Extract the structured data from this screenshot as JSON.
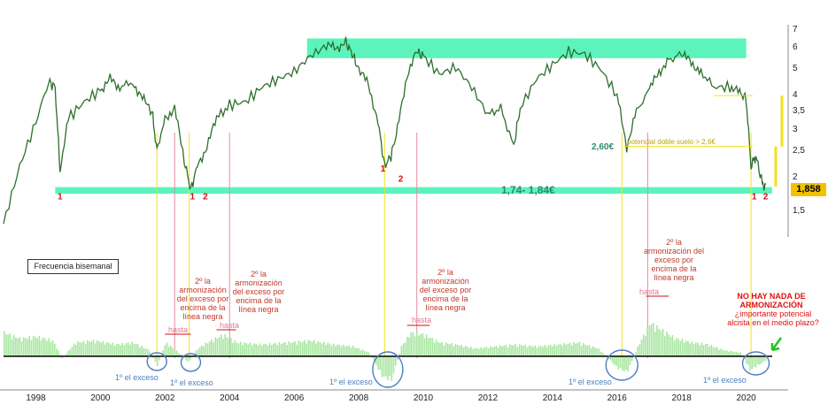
{
  "chart_data": {
    "type": "line",
    "price_axis": {
      "scale": "log",
      "ticks": [
        "7",
        "6",
        "5",
        "4",
        "3,5",
        "3",
        "2,5",
        "2",
        "1,5"
      ],
      "tick_values": [
        7,
        6,
        5,
        4,
        3.5,
        3,
        2.5,
        2,
        1.5
      ]
    },
    "x_ticks": [
      "1998",
      "2000",
      "2002",
      "2004",
      "2006",
      "2008",
      "2010",
      "2012",
      "2014",
      "2016",
      "2018",
      "2020"
    ],
    "x_tick_values": [
      1998,
      2000,
      2002,
      2004,
      2006,
      2008,
      2010,
      2012,
      2014,
      2016,
      2018,
      2020
    ],
    "price_series": {
      "x": [
        1997.0,
        1997.5,
        1998.0,
        1998.4,
        1998.6,
        1998.75,
        1999.0,
        1999.5,
        2000.0,
        2000.3,
        2000.6,
        2001.0,
        2001.3,
        2001.6,
        2001.75,
        2002.0,
        2002.3,
        2002.6,
        2002.8,
        2003.0,
        2003.3,
        2003.6,
        2004.0,
        2004.5,
        2005.0,
        2005.5,
        2006.0,
        2006.5,
        2007.0,
        2007.3,
        2007.6,
        2007.8,
        2008.0,
        2008.3,
        2008.6,
        2008.8,
        2009.0,
        2009.2,
        2009.5,
        2009.8,
        2010.0,
        2010.5,
        2011.0,
        2011.5,
        2012.0,
        2012.4,
        2012.8,
        2013.0,
        2013.5,
        2014.0,
        2014.5,
        2015.0,
        2015.5,
        2016.0,
        2016.3,
        2016.6,
        2017.0,
        2017.3,
        2017.6,
        2018.0,
        2018.3,
        2018.6,
        2019.0,
        2019.5,
        2019.8,
        2020.0,
        2020.15,
        2020.3,
        2020.5,
        2020.6
      ],
      "y": [
        1.35,
        2.2,
        3.2,
        4.5,
        4.3,
        2.1,
        3.3,
        3.8,
        4.2,
        4.6,
        4.3,
        4.5,
        3.9,
        3.5,
        2.5,
        3.3,
        3.6,
        2.3,
        1.8,
        2.2,
        2.6,
        3.3,
        3.7,
        3.8,
        4.3,
        4.6,
        4.9,
        5.6,
        6.1,
        6.0,
        6.3,
        5.7,
        5.0,
        4.4,
        3.2,
        2.2,
        2.4,
        3.0,
        4.8,
        5.8,
        5.6,
        4.8,
        5.1,
        4.3,
        3.4,
        3.6,
        2.6,
        3.6,
        4.6,
        5.2,
        5.8,
        5.7,
        5.0,
        4.0,
        2.6,
        3.5,
        4.2,
        4.9,
        5.4,
        5.7,
        5.3,
        4.9,
        4.3,
        4.3,
        4.1,
        3.9,
        2.2,
        2.4,
        1.9,
        1.858
      ]
    },
    "resistance_band": {
      "x_start": 2006.4,
      "x_end": 2020.0,
      "y_low": 5.5,
      "y_high": 6.5
    },
    "support_band": {
      "x_start": 1998.6,
      "x_end": 2020.8,
      "y_low": 1.74,
      "y_high": 1.84,
      "label": "1,74- 1,84€"
    },
    "current_price": "1,858",
    "level_260": {
      "label": "2,60€",
      "value": 2.6,
      "x_start": 2016.2,
      "x_end": 2020.2
    },
    "level_400": {
      "value": 4.0,
      "x_start": 2019.0,
      "x_end": 2020.2
    },
    "double_bottom_label": "potencial doble suelo > 2,6€",
    "markers": [
      {
        "t": "1",
        "x": 1998.75,
        "y": 1.66
      },
      {
        "t": "1",
        "x": 2002.85,
        "y": 1.66
      },
      {
        "t": "2",
        "x": 2003.25,
        "y": 1.66
      },
      {
        "t": "1",
        "x": 2008.75,
        "y": 2.1
      },
      {
        "t": "2",
        "x": 2009.3,
        "y": 1.93
      },
      {
        "t": "1",
        "x": 2020.25,
        "y": 1.66
      },
      {
        "t": "2",
        "x": 2020.6,
        "y": 1.66
      }
    ],
    "frequency_label": "Frecuencia bisemanal",
    "osc_series": {
      "x": [
        1997.0,
        1997.5,
        1998.0,
        1998.5,
        1998.8,
        1999.2,
        1999.8,
        2000.5,
        2001.0,
        2001.5,
        2001.75,
        2002.0,
        2002.4,
        2002.7,
        2003.0,
        2003.4,
        2003.8,
        2004.2,
        2005.0,
        2005.8,
        2006.5,
        2007.2,
        2007.8,
        2008.3,
        2008.7,
        2009.0,
        2009.3,
        2009.6,
        2010.0,
        2010.5,
        2011.0,
        2011.6,
        2012.2,
        2012.8,
        2013.5,
        2014.2,
        2014.8,
        2015.4,
        2016.0,
        2016.3,
        2016.6,
        2017.0,
        2017.4,
        2017.8,
        2018.3,
        2018.8,
        2019.3,
        2019.8,
        2020.1,
        2020.3,
        2020.6
      ],
      "y": [
        0.6,
        0.45,
        0.5,
        0.4,
        -0.05,
        0.35,
        0.4,
        0.3,
        0.35,
        0.15,
        -0.25,
        0.35,
        0.1,
        -0.15,
        0.2,
        0.4,
        0.55,
        0.35,
        0.3,
        0.35,
        0.4,
        0.3,
        0.25,
        0.1,
        -0.5,
        -0.6,
        0.25,
        0.6,
        0.55,
        0.35,
        0.3,
        0.2,
        0.25,
        0.3,
        0.25,
        0.3,
        0.35,
        0.2,
        -0.3,
        -0.4,
        0.2,
        0.85,
        0.65,
        0.45,
        0.35,
        0.3,
        0.15,
        0.1,
        -0.35,
        -0.25,
        -0.1
      ]
    },
    "annotations": {
      "second_harm_text": "2º la armonización del exceso por encima de la línea negra",
      "hasta": "hasta",
      "first_excess": "1º el exceso",
      "no_harm_title": "NO HAY NADA DE ARMONIZACIÓN",
      "no_harm_question": "¿importante potencial alcista en el medio plazo?"
    },
    "colors": {
      "price": "#2d6e2d",
      "band": "#3ff2b0",
      "osc": "#a8e6a0",
      "pink": "#e88aa0",
      "yellow": "#f2e21c",
      "blue": "#4a7fc1",
      "red": "#d01010",
      "arrow": "#22c422"
    }
  }
}
